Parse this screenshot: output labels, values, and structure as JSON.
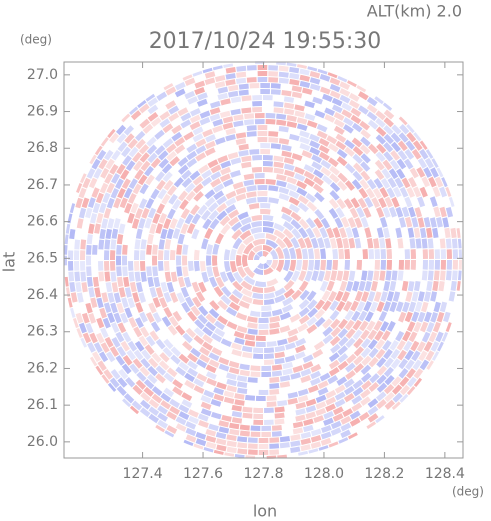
{
  "chart_data": {
    "type": "radar-ppi",
    "title": "2017/10/24 19:55:30",
    "subtitle": "ALT(km) 2.0",
    "x_label": "lon",
    "y_label": "lat",
    "x_unit": "(deg)",
    "y_unit": "(deg)",
    "xlim": [
      127.14,
      128.46
    ],
    "ylim": [
      25.956,
      27.035
    ],
    "xticks": [
      127.4,
      127.6,
      127.8,
      {
        "value": 128,
        "label": "128.0"
      },
      128.2,
      128.4
    ],
    "yticks": [
      {
        "value": 26,
        "label": "26.0"
      },
      26.1,
      26.2,
      26.3,
      26.4,
      26.5,
      26.6,
      26.7,
      26.8,
      26.9,
      {
        "value": 27,
        "label": "27.0"
      }
    ]
  }
}
